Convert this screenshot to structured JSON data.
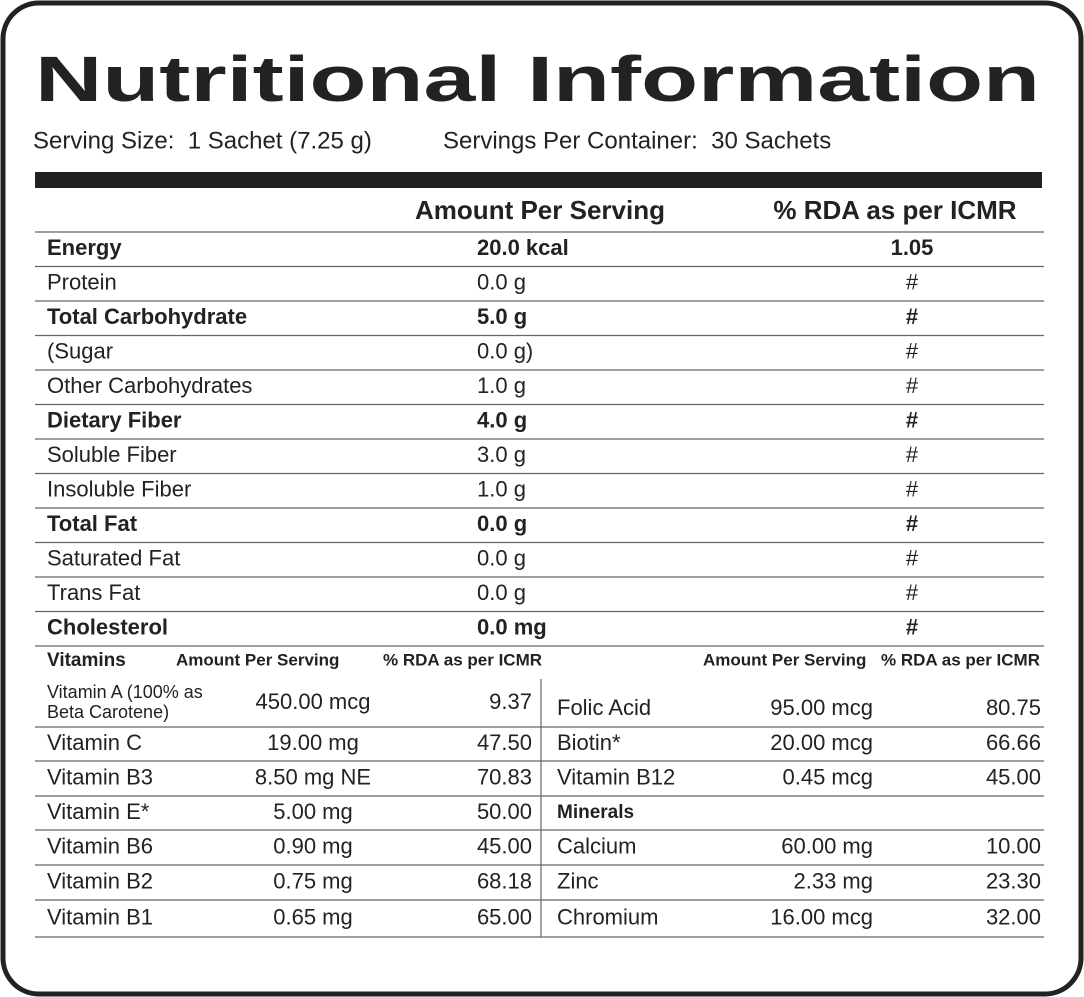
{
  "title": "Nutritional Information",
  "serving_size": "Serving Size:  1 Sachet (7.25 g)",
  "servings_per_container": "Servings Per Container:  30 Sachets",
  "main_table": {
    "headers": [
      "Amount Per Serving",
      "% RDA as per ICMR"
    ],
    "rows": [
      {
        "nutrient": "Energy",
        "amount": "20.0 kcal",
        "rda": "1.05",
        "bold": true
      },
      {
        "nutrient": "Protein",
        "amount": "0.0 g",
        "rda": "#",
        "bold": false
      },
      {
        "nutrient": "Total Carbohydrate",
        "amount": "5.0 g",
        "rda": "#",
        "bold": true
      },
      {
        "nutrient": "(Sugar",
        "amount": "0.0 g)",
        "rda": "#",
        "bold": false
      },
      {
        "nutrient": "Other Carbohydrates",
        "amount": "1.0 g",
        "rda": "#",
        "bold": false
      },
      {
        "nutrient": "Dietary Fiber",
        "amount": "4.0 g",
        "rda": "#",
        "bold": true
      },
      {
        "nutrient": "Soluble Fiber",
        "amount": "3.0 g",
        "rda": "#",
        "bold": false
      },
      {
        "nutrient": "Insoluble Fiber",
        "amount": "1.0 g",
        "rda": "#",
        "bold": false
      },
      {
        "nutrient": "Total Fat",
        "amount": "0.0 g",
        "rda": "#",
        "bold": true
      },
      {
        "nutrient": "Saturated Fat",
        "amount": "0.0 g",
        "rda": "#",
        "bold": false
      },
      {
        "nutrient": "Trans Fat",
        "amount": "0.0 g",
        "rda": "#",
        "bold": false
      },
      {
        "nutrient": "Cholesterol",
        "amount": "0.0 mg",
        "rda": "#",
        "bold": true
      }
    ]
  },
  "micronutrients": {
    "headers": [
      "Vitamins",
      "Amount Per Serving",
      "% RDA as per ICMR",
      "Amount Per Serving",
      "% RDA as per ICMR"
    ],
    "left_rows": [
      [
        [
          "Vitamin A (100% as",
          "Beta Carotene)"
        ],
        "450.00 mcg",
        "9.37"
      ],
      [
        "Vitamin C",
        "19.00 mg",
        "47.50"
      ],
      [
        "Vitamin B3",
        "8.50 mg NE",
        "70.83"
      ],
      [
        "Vitamin E*",
        "5.00 mg",
        "50.00"
      ],
      [
        "Vitamin B6",
        "0.90 mg",
        "45.00"
      ],
      [
        "Vitamin B2",
        "0.75 mg",
        "68.18"
      ],
      [
        "Vitamin B1",
        "0.65 mg",
        "65.00"
      ]
    ],
    "right_rows": [
      [
        "Folic Acid",
        "95.00 mcg",
        "80.75"
      ],
      [
        "Biotin*",
        "20.00 mcg",
        "66.66"
      ],
      [
        "Vitamin B12",
        "0.45 mcg",
        "45.00"
      ],
      [
        "Minerals"
      ],
      [
        "Calcium",
        "60.00 mg",
        "10.00"
      ],
      [
        "Zinc",
        "2.33 mg",
        "23.30"
      ],
      [
        "Chromium",
        "16.00 mcg",
        "32.00"
      ]
    ]
  }
}
